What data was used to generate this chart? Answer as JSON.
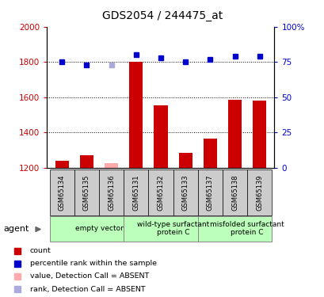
{
  "title": "GDS2054 / 244475_at",
  "samples": [
    "GSM65134",
    "GSM65135",
    "GSM65136",
    "GSM65131",
    "GSM65132",
    "GSM65133",
    "GSM65137",
    "GSM65138",
    "GSM65139"
  ],
  "absent": [
    false,
    false,
    true,
    false,
    false,
    false,
    false,
    false,
    false
  ],
  "count_values": [
    1240,
    1270,
    1225,
    1800,
    1555,
    1285,
    1365,
    1585,
    1580
  ],
  "rank_values": [
    75,
    73,
    73,
    80,
    78,
    75,
    77,
    79,
    79
  ],
  "ylim_left": [
    1200,
    2000
  ],
  "ylim_right": [
    0,
    100
  ],
  "yticks_left": [
    1200,
    1400,
    1600,
    1800,
    2000
  ],
  "yticks_right": [
    0,
    25,
    50,
    75,
    100
  ],
  "yticklabels_right": [
    "0",
    "25",
    "50",
    "75",
    "100%"
  ],
  "bar_color": "#cc0000",
  "bar_color_absent": "#ffaaaa",
  "rank_color": "#0000cc",
  "rank_color_absent": "#aaaadd",
  "groups": [
    {
      "label": "empty vector",
      "start": 0,
      "end": 3
    },
    {
      "label": "wild-type surfactant\nprotein C",
      "start": 3,
      "end": 6
    },
    {
      "label": "misfolded surfactant\nprotein C",
      "start": 6,
      "end": 9
    }
  ],
  "group_bg_color": "#bbffbb",
  "sample_bg_color": "#cccccc",
  "agent_label": "agent",
  "legend_items": [
    {
      "label": "count",
      "color": "#cc0000"
    },
    {
      "label": "percentile rank within the sample",
      "color": "#0000cc"
    },
    {
      "label": "value, Detection Call = ABSENT",
      "color": "#ffaaaa"
    },
    {
      "label": "rank, Detection Call = ABSENT",
      "color": "#aaaadd"
    }
  ]
}
